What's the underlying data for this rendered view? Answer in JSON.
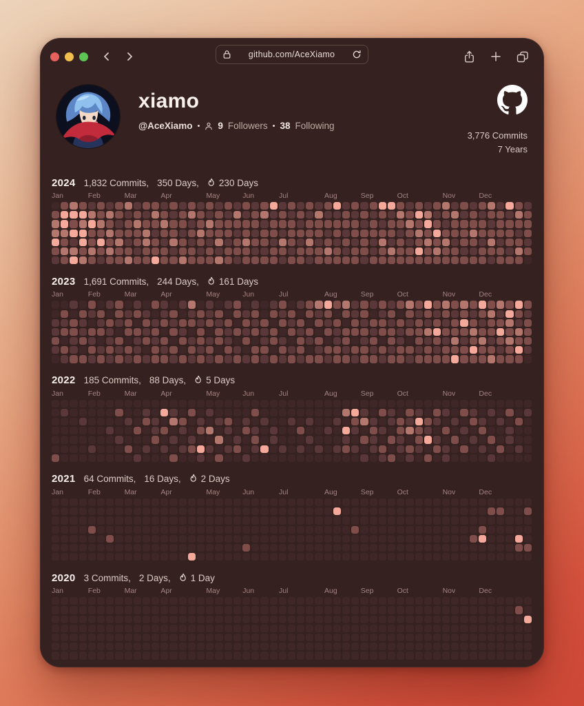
{
  "window": {
    "url": "github.com/AceXiamo"
  },
  "profile": {
    "name": "xiamo",
    "handle": "@AceXiamo",
    "dot": "•",
    "followers_count": "9",
    "followers_label": "Followers",
    "following_count": "38",
    "following_label": "Following"
  },
  "summary": {
    "total_commits": "3,776 Commits",
    "total_years": "7 Years"
  },
  "months": [
    "Jan",
    "Feb",
    "Mar",
    "Apr",
    "May",
    "Jun",
    "Jul",
    "Aug",
    "Sep",
    "Oct",
    "Nov",
    "Dec"
  ],
  "heatmap_colors": [
    "#3f2728",
    "#5a3839",
    "#7f4e4a",
    "#b4776e",
    "#f5a99b"
  ],
  "years": [
    {
      "year": "2024",
      "commits": "1,832 Commits,",
      "days": "350 Days,",
      "streak": "230 Days",
      "weeks": [
        "0233421",
        "2443232",
        "3424134",
        "2434423",
        "1342232",
        "2232421",
        "1323232",
        "2212322",
        "3122123",
        "1232212",
        "2123322",
        "2321224",
        "1232122",
        "2122312",
        "1221223",
        "2312122",
        "1223212",
        "2132122",
        "1222313",
        "2122122",
        "1321221",
        "2122322",
        "1221212",
        "2312212",
        "4122122",
        "1221321",
        "2122212",
        "1212122",
        "2122321",
        "1322122",
        "2121232",
        "4122122",
        "1221212",
        "2122122",
        "1212221",
        "2122112",
        "4212322",
        "4122132",
        "2321222",
        "1232122",
        "2423242",
        "1342322",
        "2124232",
        "3212322",
        "1322122",
        "2122212",
        "1223212",
        "2122122",
        "3212321",
        "1222122",
        "4122212",
        "2321232",
        "1222120"
      ]
    },
    {
      "year": "2023",
      "commits": "1,691 Commits,",
      "days": "244 Days,",
      "streak": "161 Days",
      "weeks": [
        "0011210",
        "0212021",
        "1022112",
        "0211202",
        "2102121",
        "0212012",
        "1021121",
        "2210212",
        "0122021",
        "1202112",
        "0121201",
        "2012122",
        "1120212",
        "0212021",
        "1021202",
        "3120121",
        "0212212",
        "1120121",
        "0212202",
        "1021121",
        "2202012",
        "0121201",
        "1212022",
        "0021121",
        "1202202",
        "2120121",
        "0212012",
        "1021221",
        "2202102",
        "3120212",
        "4212021",
        "2021122",
        "3202212",
        "1122021",
        "2212122",
        "1021212",
        "2122021",
        "1212212",
        "2021122",
        "3212021",
        "2122212",
        "4213122",
        "2124212",
        "3212122",
        "2122324",
        "3242122",
        "2123242",
        "4212322",
        "2322123",
        "3124212",
        "2432322",
        "4213242",
        "2122210"
      ]
    },
    {
      "year": "2022",
      "commits": "185 Commits,",
      "days": "88 Days,",
      "streak": "5 Days",
      "weeks": [
        "0000002",
        "0100000",
        "0000000",
        "0010000",
        "0000010",
        "0000000",
        "0001000",
        "0200100",
        "0010020",
        "0002001",
        "0120010",
        "0011200",
        "0402010",
        "0130102",
        "0021010",
        "0200120",
        "0012041",
        "0103010",
        "0010302",
        "0021010",
        "0000120",
        "0012001",
        "0201210",
        "0010040",
        "0001100",
        "0000010",
        "0010000",
        "0002010",
        "0010100",
        "0000010",
        "0001000",
        "0010010",
        "0304120",
        "0421010",
        "0130201",
        "0012110",
        "0201021",
        "0110202",
        "0022110",
        "0213021",
        "0142210",
        "0021402",
        "0210120",
        "0102011",
        "0010200",
        "0201020",
        "0120100",
        "0012010",
        "0100201",
        "0010020",
        "0201100",
        "0020010",
        "0100000"
      ]
    },
    {
      "year": "2021",
      "commits": "64 Commits,",
      "days": "16 Days,",
      "streak": "2 Days",
      "weeks": [
        "0000000",
        "0000000",
        "0000000",
        "0000000",
        "0002000",
        "0000000",
        "0000200",
        "0000000",
        "0000000",
        "0000000",
        "0000000",
        "0000000",
        "0000000",
        "0000000",
        "0000000",
        "0000004",
        "0000000",
        "0000000",
        "0000000",
        "0000000",
        "0000000",
        "0000020",
        "0000000",
        "0000000",
        "0000000",
        "0000000",
        "0000000",
        "0000000",
        "0000000",
        "0000000",
        "0000000",
        "0400000",
        "0000000",
        "0002000",
        "0000000",
        "0000000",
        "0000000",
        "0000000",
        "0000000",
        "0000000",
        "0000000",
        "0000000",
        "0000000",
        "0000000",
        "0000000",
        "0000000",
        "0000200",
        "0002400",
        "0200000",
        "0200000",
        "0000000",
        "0000420",
        "0200020"
      ]
    },
    {
      "year": "2020",
      "commits": "3 Commits,",
      "days": "2 Days,",
      "streak": "1 Day",
      "weeks": [
        "0000000",
        "0000000",
        "0000000",
        "0000000",
        "0000000",
        "0000000",
        "0000000",
        "0000000",
        "0000000",
        "0000000",
        "0000000",
        "0000000",
        "0000000",
        "0000000",
        "0000000",
        "0000000",
        "0000000",
        "0000000",
        "0000000",
        "0000000",
        "0000000",
        "0000000",
        "0000000",
        "0000000",
        "0000000",
        "0000000",
        "0000000",
        "0000000",
        "0000000",
        "0000000",
        "0000000",
        "0000000",
        "0000000",
        "0000000",
        "0000000",
        "0000000",
        "0000000",
        "0000000",
        "0000000",
        "0000000",
        "0000000",
        "0000000",
        "0000000",
        "0000000",
        "0000000",
        "0000000",
        "0000000",
        "0000000",
        "0000000",
        "0000000",
        "0000000",
        "0200000",
        "0040000"
      ]
    }
  ]
}
